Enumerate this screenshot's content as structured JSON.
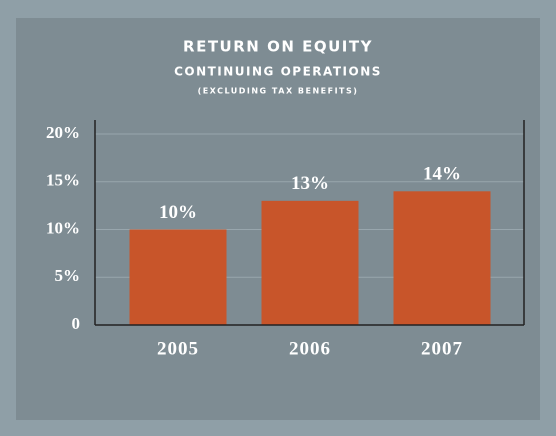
{
  "chart_data": {
    "type": "bar",
    "title": "RETURN ON EQUITY",
    "subtitle": "CONTINUING OPERATIONS",
    "note": "(EXCLUDING TAX BENEFITS)",
    "categories": [
      "2005",
      "2006",
      "2007"
    ],
    "values": [
      10,
      13,
      14
    ],
    "value_labels": [
      "10%",
      "13%",
      "14%"
    ],
    "color": "#c8552a",
    "ylim": [
      0,
      20
    ],
    "yticks": [
      0,
      {
        "value": 5,
        "label": "5%"
      },
      {
        "value": 10,
        "label": "10%"
      },
      {
        "value": 15,
        "label": "15%"
      },
      {
        "value": 20,
        "label": "20%"
      }
    ],
    "grid": true
  }
}
